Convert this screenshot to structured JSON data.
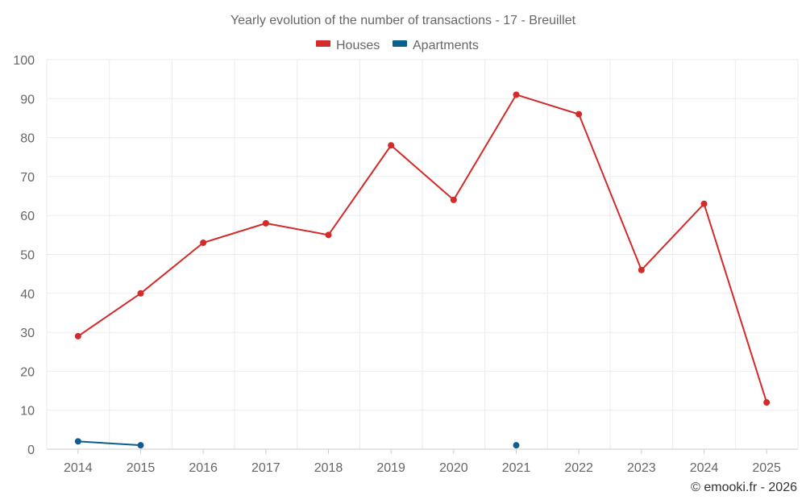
{
  "chart_data": {
    "type": "line",
    "title": "Yearly evolution of the number of transactions - 17 - Breuillet",
    "categories": [
      "2014",
      "2015",
      "2016",
      "2017",
      "2018",
      "2019",
      "2020",
      "2021",
      "2022",
      "2023",
      "2024",
      "2025"
    ],
    "series": [
      {
        "name": "Houses",
        "color": "#d32a2a",
        "values": [
          29,
          40,
          53,
          58,
          55,
          78,
          64,
          91,
          86,
          46,
          63,
          12
        ]
      },
      {
        "name": "Apartments",
        "color": "#0b5f8e",
        "values": [
          2,
          1,
          null,
          null,
          null,
          null,
          null,
          1,
          null,
          null,
          null,
          null
        ]
      }
    ],
    "ylim": [
      0,
      100
    ],
    "yticks": [
      0,
      10,
      20,
      30,
      40,
      50,
      60,
      70,
      80,
      90,
      100
    ],
    "xlabel": "",
    "ylabel": "",
    "grid": true,
    "legend": "top-center"
  },
  "credit": "© emooki.fr - 2026"
}
